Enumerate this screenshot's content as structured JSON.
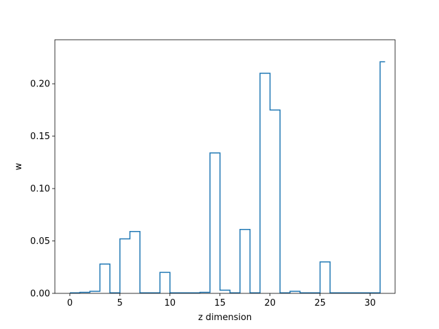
{
  "chart_data": {
    "type": "step",
    "xlabel": "z dimension",
    "ylabel": "w",
    "xlim": [
      -1.5,
      32.5
    ],
    "ylim": [
      0,
      0.242
    ],
    "grid": false,
    "legend": "none",
    "line_color": "#1f77b4",
    "x_ticks": [
      0,
      5,
      10,
      15,
      20,
      25,
      30
    ],
    "x_tick_labels": [
      "0",
      "5",
      "10",
      "15",
      "20",
      "25",
      "30"
    ],
    "y_ticks": [
      0,
      0.05,
      0.1,
      0.15,
      0.2
    ],
    "y_tick_labels": [
      "0.00",
      "0.05",
      "0.10",
      "0.15",
      "0.20"
    ],
    "series": [
      {
        "x": [
          0,
          1,
          2,
          3,
          4,
          5,
          6,
          7,
          8,
          9,
          10,
          11,
          12,
          13,
          14,
          15,
          16,
          17,
          18,
          19,
          20,
          21,
          22,
          23,
          24,
          25,
          26,
          27,
          28,
          29,
          30,
          31
        ],
        "values": [
          0.0005,
          0.001,
          0.002,
          0.028,
          0.0005,
          0.052,
          0.059,
          0.0005,
          0.0005,
          0.02,
          0.0005,
          0.0005,
          0.0005,
          0.001,
          0.134,
          0.003,
          0.0005,
          0.061,
          0.0005,
          0.21,
          0.175,
          0.0005,
          0.002,
          0.0005,
          0.0005,
          0.03,
          0.0005,
          0.0005,
          0.0005,
          0.0005,
          0.0005,
          0.221
        ]
      }
    ]
  }
}
